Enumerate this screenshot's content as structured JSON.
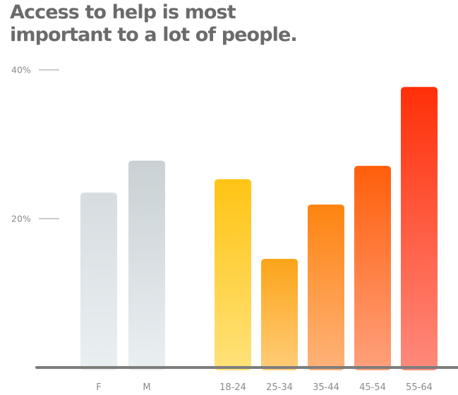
{
  "title_lines": [
    "Access to help is most",
    "important to a lot of people."
  ],
  "chart_data": {
    "type": "bar",
    "title": "Access to help is most important to a lot of people.",
    "xlabel": "",
    "ylabel": "",
    "ylim": [
      0,
      40
    ],
    "yticks": [
      {
        "value": 40,
        "label": "40%"
      },
      {
        "value": 20,
        "label": "20%"
      }
    ],
    "grid": false,
    "groups": [
      {
        "name": "gender",
        "categories": [
          "F",
          "M"
        ],
        "values": [
          23.5,
          27.8
        ]
      },
      {
        "name": "age",
        "categories": [
          "18-24",
          "25-34",
          "35-44",
          "45-54",
          "55-64"
        ],
        "values": [
          25.3,
          14.6,
          21.9,
          27.1,
          37.7
        ]
      }
    ],
    "colors": {
      "gender_top": "#d6dde0",
      "gender_bottom": "#eaeff2",
      "age": [
        {
          "top": "#ffc414",
          "bottom": "#ffe27a"
        },
        {
          "top": "#fca41a",
          "bottom": "#ffcd78"
        },
        {
          "top": "#fe8410",
          "bottom": "#ffb27a"
        },
        {
          "top": "#ff5f0a",
          "bottom": "#ffa07c"
        },
        {
          "top": "#ff2f08",
          "bottom": "#ff8a7c"
        }
      ],
      "baseline": "#7d7d7d",
      "text": "#8a8a8a"
    }
  }
}
